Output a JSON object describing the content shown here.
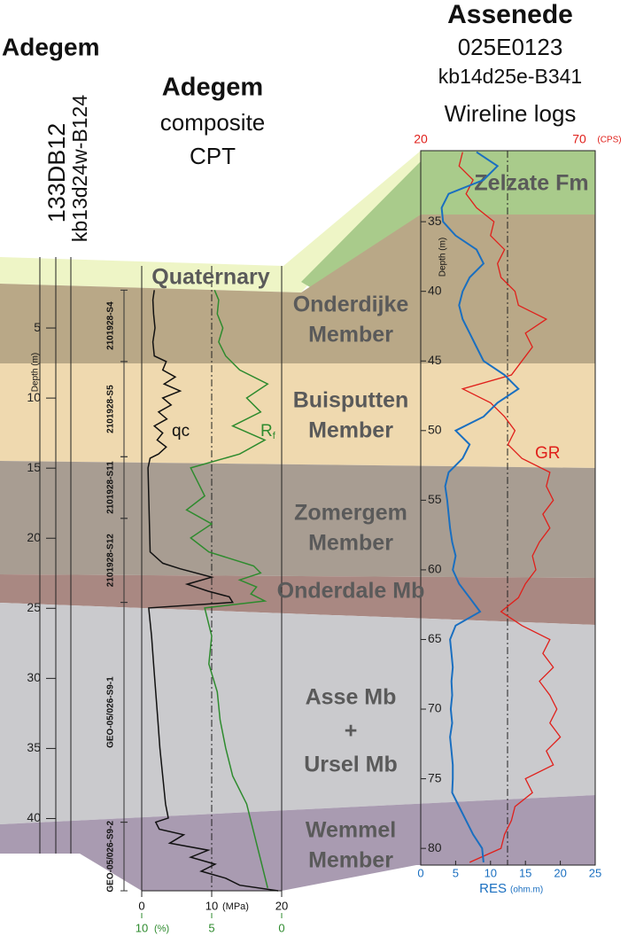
{
  "chart_data": {
    "type": "well-log-correlation",
    "left_well": {
      "site": "Adegem",
      "code": "133DB12",
      "id": "kb13d24w-B124",
      "depth_label": "Depth (m)",
      "ylim": [
        0,
        42.5
      ],
      "yticks": [
        5,
        10,
        15,
        20,
        25,
        30,
        35,
        40
      ]
    },
    "cpt": {
      "site": "Adegem",
      "line1": "composite",
      "line2": "CPT",
      "ylim": [
        0,
        45.2
      ],
      "qc": {
        "label": "qc",
        "color": "#111111",
        "unit": "(MPa)",
        "xlim": [
          0,
          20
        ],
        "xticks": [
          0,
          10,
          20
        ],
        "depth": [
          2.3,
          3,
          4,
          5,
          6,
          7,
          7.4,
          8,
          8.5,
          9,
          9.5,
          10,
          10.5,
          11,
          11.5,
          12,
          12.5,
          13,
          13.5,
          14,
          14.3,
          15,
          17,
          19,
          21,
          21.8,
          22.2,
          22.8,
          23.3,
          23.8,
          24.2,
          24.6,
          25,
          27,
          29,
          31,
          33,
          35,
          37,
          39,
          40,
          40.3,
          40.8,
          41.2,
          41.8,
          42.3,
          42.8,
          43.3,
          43.8,
          44.3,
          44.8,
          45.2
        ],
        "values": [
          1.8,
          1.6,
          1.7,
          1.9,
          1.6,
          1.8,
          3.5,
          3.0,
          4.8,
          3.2,
          5.5,
          3.0,
          4.2,
          2.4,
          3.6,
          1.8,
          3.0,
          2.2,
          3.5,
          2.4,
          1.2,
          0.9,
          1.0,
          1.1,
          1.2,
          3.0,
          5.5,
          10.0,
          6.5,
          9.5,
          12.5,
          13.0,
          1.0,
          1.4,
          1.7,
          2.0,
          2.3,
          2.6,
          3.0,
          3.4,
          3.8,
          2.0,
          2.5,
          6.0,
          4.0,
          9.5,
          7.0,
          10.5,
          8.5,
          12.0,
          14.0,
          19.5
        ]
      },
      "rf": {
        "label": "R",
        "label_sub": "f",
        "color": "#2e8b2e",
        "unit": "(%)",
        "xlim": [
          10,
          0
        ],
        "xticks": [
          10,
          5,
          0
        ],
        "depth": [
          2.3,
          3,
          4,
          5,
          6,
          7,
          8,
          9,
          10,
          11,
          12,
          13,
          14,
          15,
          16,
          17,
          18,
          19,
          20,
          21,
          22,
          22.5,
          23,
          23.5,
          24,
          24.5,
          25,
          27,
          29,
          31,
          33,
          35,
          37,
          39,
          41,
          43,
          45
        ],
        "values": [
          4.8,
          4.5,
          4.6,
          4.2,
          4.5,
          4.0,
          3.0,
          1.0,
          2.5,
          1.5,
          3.5,
          1.2,
          3.0,
          6.5,
          6.0,
          5.5,
          6.8,
          5.0,
          6.5,
          5.2,
          2.0,
          1.5,
          3.0,
          1.8,
          2.2,
          1.2,
          5.5,
          5.0,
          5.2,
          4.6,
          4.4,
          4.0,
          3.5,
          2.5,
          2.0,
          1.5,
          1.0
        ]
      },
      "samples": [
        {
          "label": "2101928-S4",
          "top": 2.3,
          "bottom": 7.4
        },
        {
          "label": "2101928-S5",
          "top": 7.4,
          "bottom": 14.2
        },
        {
          "label": "2101928-S11",
          "top": 14.2,
          "bottom": 18.6
        },
        {
          "label": "2101928-S12",
          "top": 18.6,
          "bottom": 24.6
        },
        {
          "label": "GEO-05/026-S9-1",
          "top": 24.6,
          "bottom": 40.3
        },
        {
          "label": "GEO-05/026-S9-2",
          "top": 40.3,
          "bottom": 45.2
        }
      ]
    },
    "right_well": {
      "site": "Assenede",
      "code": "025E0123",
      "id": "kb14d25e-B341",
      "subtitle": "Wireline logs",
      "depth_label": "Depth (m)",
      "ylim": [
        29.9,
        81.2
      ],
      "yticks": [
        35,
        40,
        45,
        50,
        55,
        60,
        65,
        70,
        75,
        80
      ],
      "gr": {
        "label": "GR",
        "color": "#e0201b",
        "unit": "(CPS)",
        "xlim": [
          20,
          70
        ],
        "xticks": [
          20,
          70
        ],
        "depth": [
          30,
          31,
          32,
          33,
          34,
          35,
          36,
          37,
          38,
          39,
          40,
          41,
          42,
          43,
          44,
          45,
          46,
          47,
          48,
          49,
          50,
          51,
          52,
          53,
          54,
          55,
          56,
          57,
          58,
          59,
          60,
          61,
          62,
          63,
          64,
          65,
          66,
          67,
          68,
          69,
          70,
          71,
          72,
          73,
          74,
          75,
          76,
          77,
          78,
          79,
          80,
          81
        ],
        "values": [
          32,
          31,
          35,
          33,
          36,
          41,
          40,
          44,
          42,
          43,
          47,
          48,
          56,
          50,
          52,
          49,
          46,
          32,
          40,
          44,
          47,
          45,
          49,
          57,
          56,
          58,
          55,
          57,
          54,
          52,
          53,
          50,
          48,
          43,
          49,
          57,
          55,
          58,
          54,
          57,
          59,
          57,
          60,
          56,
          58,
          50,
          52,
          47,
          46,
          44,
          43,
          34
        ]
      },
      "res": {
        "label": "RES",
        "color": "#1a6fc0",
        "unit": "(ohm.m)",
        "xlim": [
          0,
          25
        ],
        "xticks": [
          0,
          5,
          10,
          15,
          20,
          25
        ],
        "depth": [
          30,
          31,
          32,
          33,
          34,
          35,
          36,
          37,
          38,
          39,
          40,
          41,
          42,
          43,
          44,
          45,
          46,
          47,
          48,
          49,
          50,
          51,
          52,
          53,
          54,
          55,
          56,
          57,
          58,
          59,
          60,
          61,
          62,
          63,
          64,
          65,
          66,
          67,
          68,
          69,
          70,
          71,
          72,
          73,
          74,
          75,
          76,
          77,
          78,
          79,
          80,
          81
        ],
        "values": [
          8,
          11,
          9,
          4,
          3,
          3.2,
          5,
          8,
          9,
          7,
          6,
          5.5,
          6,
          7,
          8,
          9,
          12,
          14,
          11,
          9,
          5,
          7,
          6,
          4,
          3.5,
          3.8,
          4,
          4.2,
          4.5,
          5,
          4.6,
          5.5,
          7,
          8.5,
          5,
          4.2,
          4.4,
          4.6,
          4.4,
          4.5,
          4.3,
          4.5,
          4.2,
          4.4,
          4.6,
          4.6,
          4.5,
          5.5,
          6.5,
          7.5,
          8.8,
          9
        ]
      }
    },
    "units": [
      {
        "lines": [
          "Quaternary"
        ]
      },
      {
        "lines": [
          "Zelzate Fm"
        ]
      },
      {
        "lines": [
          "Onderdijke",
          "Member"
        ]
      },
      {
        "lines": [
          "Buisputten",
          "Member"
        ]
      },
      {
        "lines": [
          "Zomergem",
          "Member"
        ]
      },
      {
        "lines": [
          "Onderdale Mb"
        ]
      },
      {
        "lines": [
          "Asse Mb",
          "+",
          "Ursel Mb"
        ]
      },
      {
        "lines": [
          "Wemmel",
          "Member"
        ]
      }
    ]
  }
}
